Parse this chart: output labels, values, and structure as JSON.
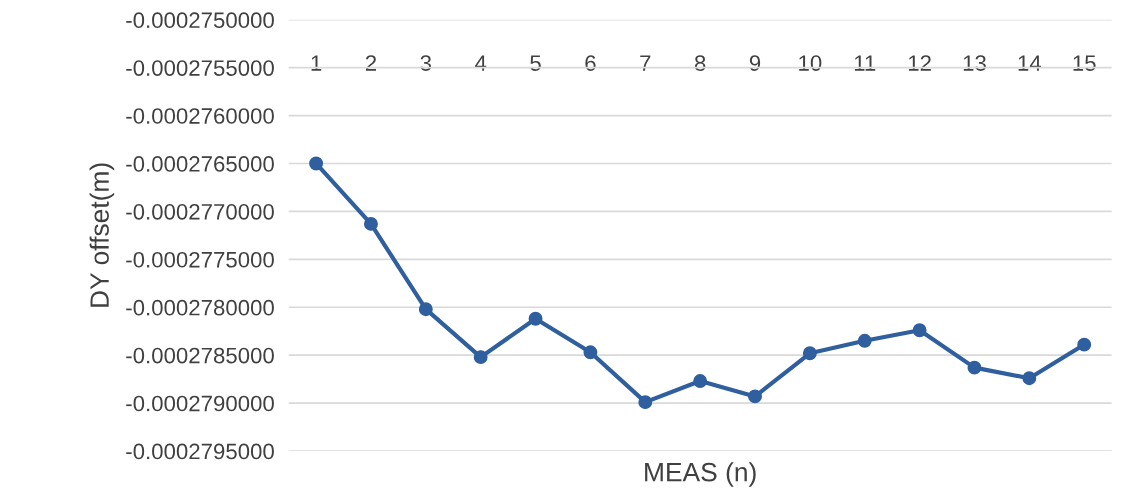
{
  "chart_data": {
    "type": "line",
    "xlabel": "MEAS (n)",
    "ylabel": "DY offset(m)",
    "categories": [
      "1",
      "2",
      "3",
      "4",
      "5",
      "6",
      "7",
      "8",
      "9",
      "10",
      "11",
      "12",
      "13",
      "14",
      "15"
    ],
    "series": [
      {
        "color": "#2f5f9e",
        "values": [
          -0.0002765,
          -0.00027713,
          -0.00027802,
          -0.00027852,
          -0.00027812,
          -0.00027847,
          -0.00027899,
          -0.00027877,
          -0.00027893,
          -0.00027848,
          -0.00027835,
          -0.00027824,
          -0.00027863,
          -0.00027874,
          -0.00027839
        ]
      }
    ],
    "ylim": [
      -0.0002795,
      -0.000275
    ],
    "yticks": [
      {
        "value": -0.0002795,
        "label": "-0.0002795000"
      },
      {
        "value": -0.000279,
        "label": "-0.0002790000"
      },
      {
        "value": -0.0002785,
        "label": "-0.0002785000"
      },
      {
        "value": -0.000278,
        "label": "-0.0002780000"
      },
      {
        "value": -0.0002775,
        "label": "-0.0002775000"
      },
      {
        "value": -0.000277,
        "label": "-0.0002770000"
      },
      {
        "value": -0.0002765,
        "label": "-0.0002765000"
      },
      {
        "value": -0.000276,
        "label": "-0.0002760000"
      },
      {
        "value": -0.0002755,
        "label": "-0.0002755000"
      },
      {
        "value": -0.000275,
        "label": "-0.0002750000"
      }
    ],
    "grid": "y",
    "marker": "circle",
    "line_style": "solid"
  }
}
